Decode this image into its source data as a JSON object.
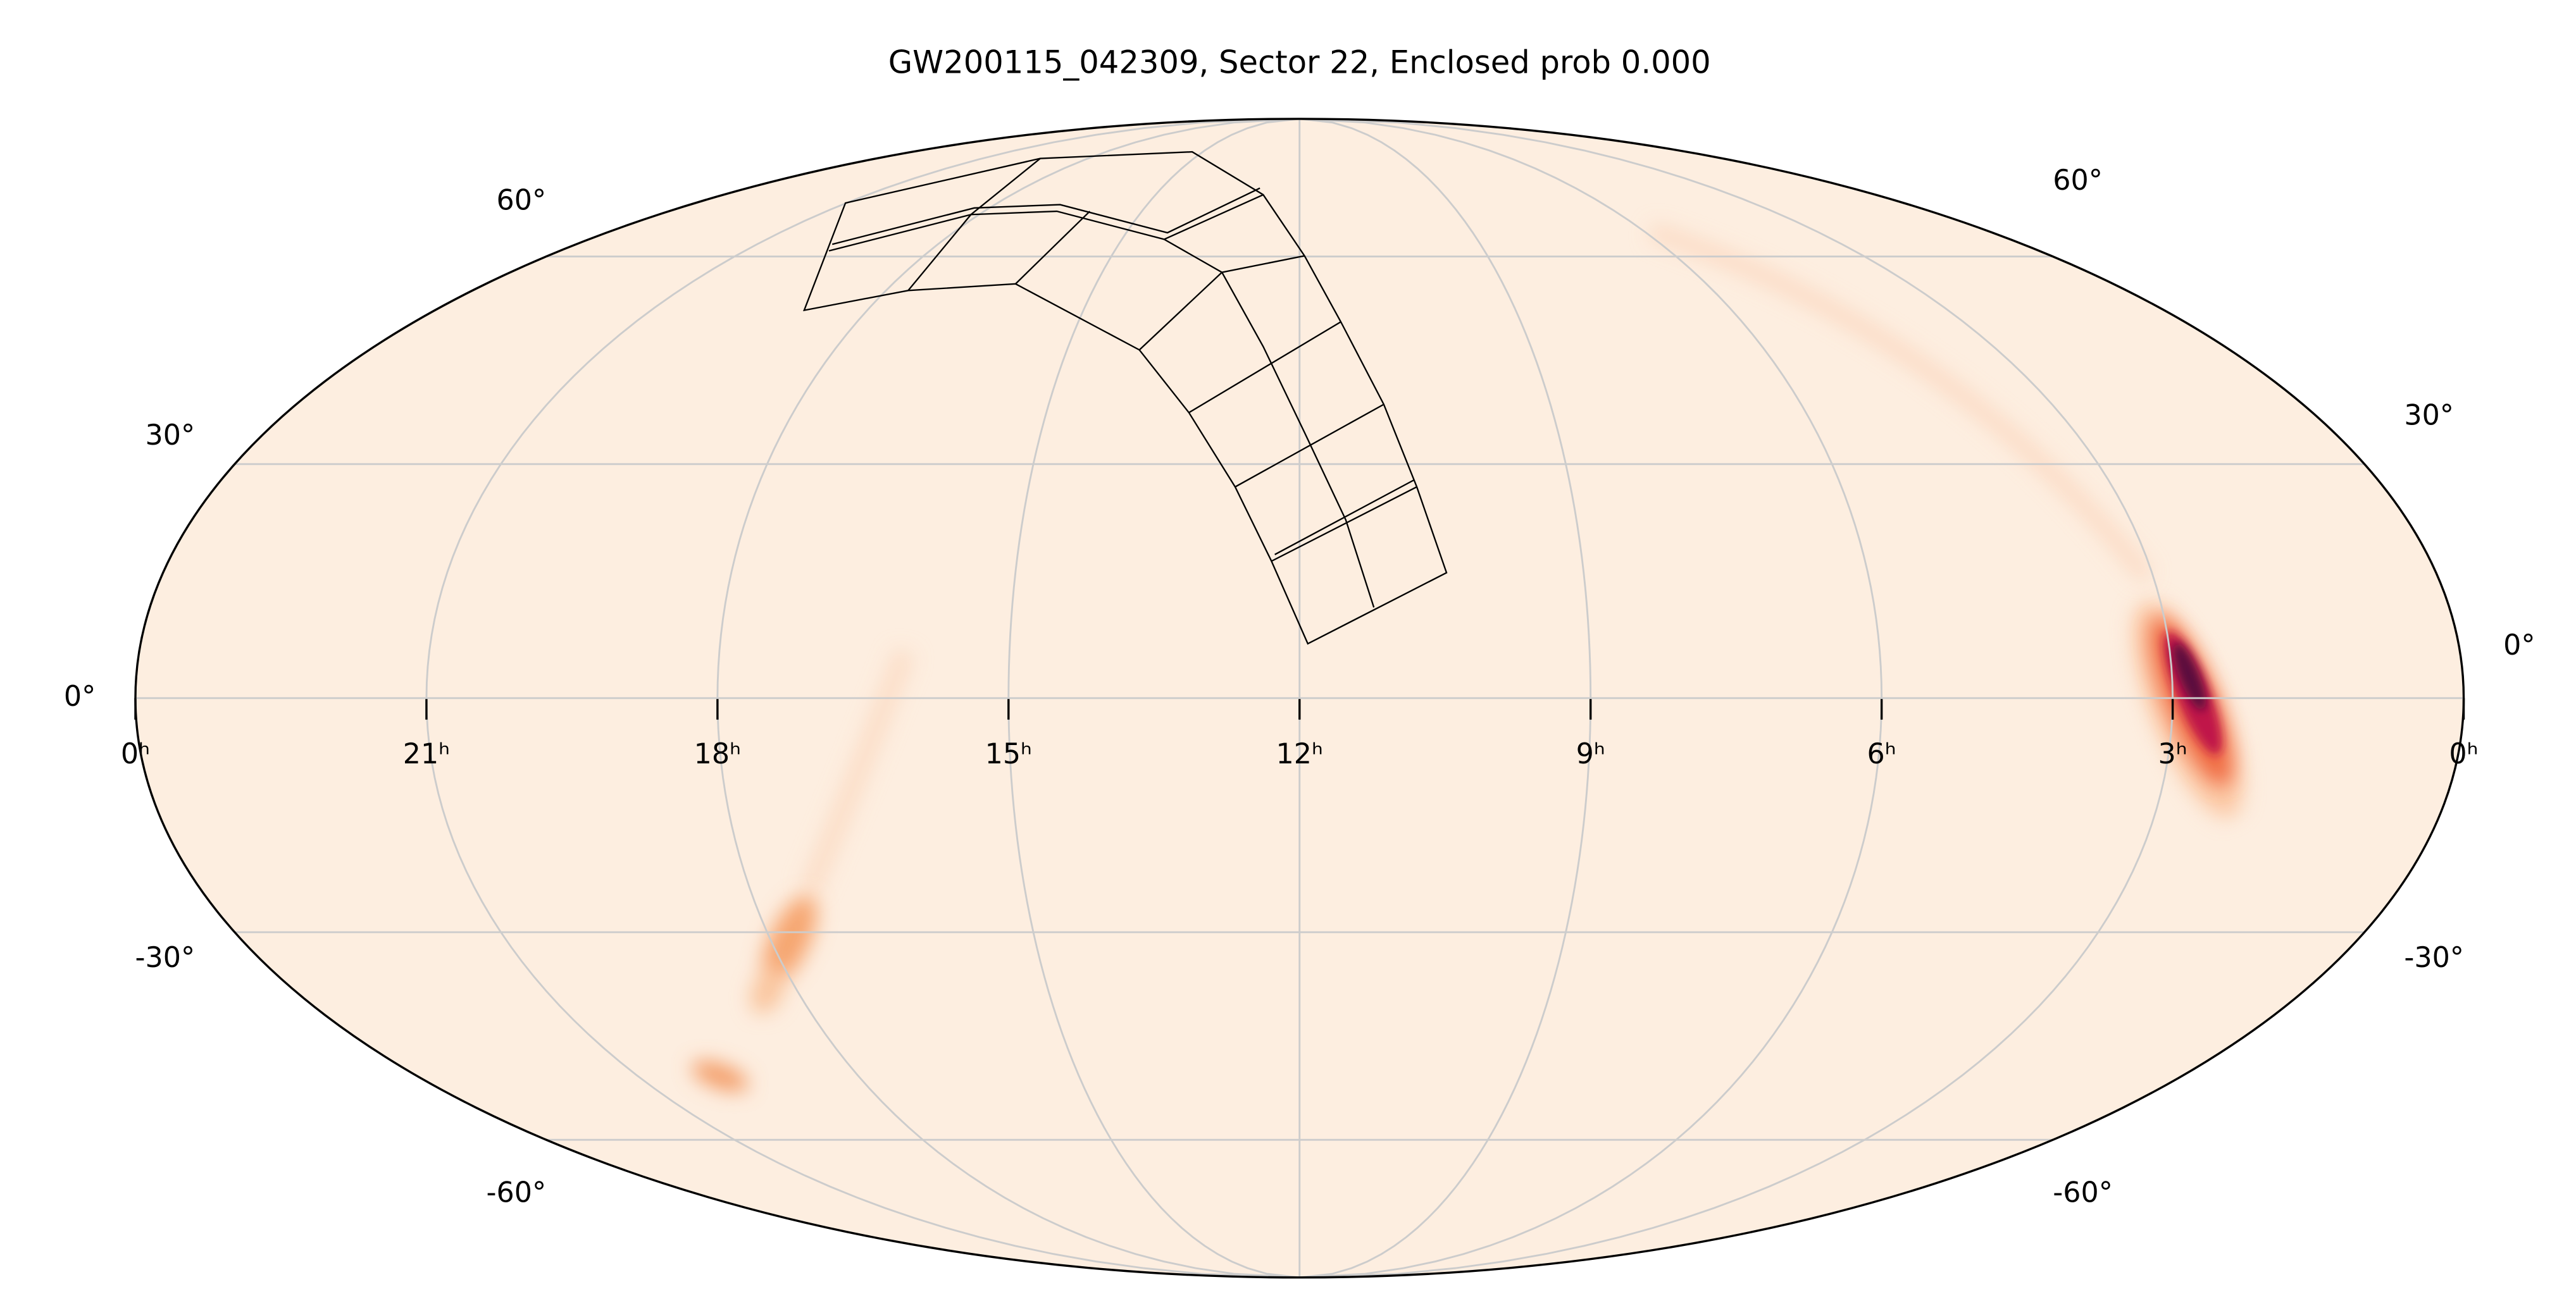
{
  "title": "GW200115_042309, Sector 22, Enclosed prob 0.000",
  "ra_ticks": [
    {
      "value": 24,
      "label": "0ʰ"
    },
    {
      "value": 21,
      "label": "21ʰ"
    },
    {
      "value": 18,
      "label": "18ʰ"
    },
    {
      "value": 15,
      "label": "15ʰ"
    },
    {
      "value": 12,
      "label": "12ʰ"
    },
    {
      "value": 9,
      "label": "9ʰ"
    },
    {
      "value": 6,
      "label": "6ʰ"
    },
    {
      "value": 3,
      "label": "3ʰ"
    },
    {
      "value": 0,
      "label": "0ʰ"
    }
  ],
  "dec_ticks": [
    {
      "value": 60,
      "label": "60°"
    },
    {
      "value": 30,
      "label": "30°"
    },
    {
      "value": 0,
      "label": "0°"
    },
    {
      "value": -30,
      "label": "-30°"
    },
    {
      "value": -60,
      "label": "-60°"
    }
  ]
}
